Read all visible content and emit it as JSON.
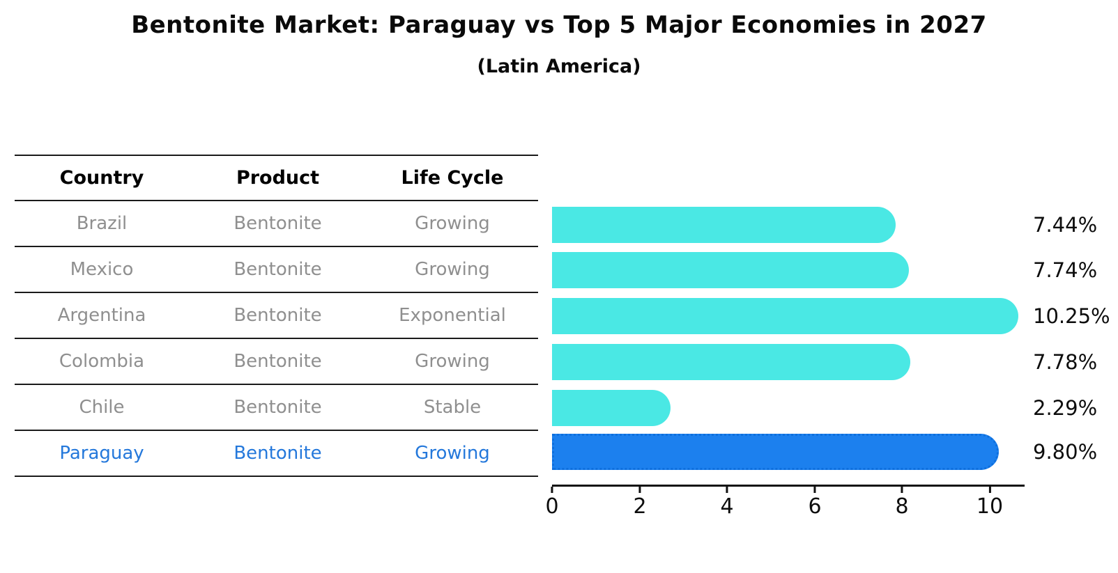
{
  "title": "Bentonite Market: Paraguay vs Top 5 Major Economies in 2027",
  "subtitle": "(Latin America)",
  "table": {
    "headers": [
      "Country",
      "Product",
      "Life Cycle"
    ],
    "rows": [
      {
        "country": "Brazil",
        "product": "Bentonite",
        "life_cycle": "Growing"
      },
      {
        "country": "Mexico",
        "product": "Bentonite",
        "life_cycle": "Growing"
      },
      {
        "country": "Argentina",
        "product": "Bentonite",
        "life_cycle": "Exponential"
      },
      {
        "country": "Colombia",
        "product": "Bentonite",
        "life_cycle": "Growing"
      },
      {
        "country": "Chile",
        "product": "Bentonite",
        "life_cycle": "Stable"
      },
      {
        "country": "Paraguay",
        "product": "Bentonite",
        "life_cycle": "Growing"
      }
    ],
    "highlight_row": 5
  },
  "chart_data": {
    "type": "bar",
    "orientation": "horizontal",
    "categories": [
      "Brazil",
      "Mexico",
      "Argentina",
      "Colombia",
      "Chile",
      "Paraguay"
    ],
    "values": [
      7.44,
      7.74,
      10.25,
      7.78,
      2.29,
      9.8
    ],
    "value_labels": [
      "7.44%",
      "7.74%",
      "10.25%",
      "7.78%",
      "2.29%",
      "9.80%"
    ],
    "x_ticks": [
      0,
      2,
      4,
      6,
      8,
      10
    ],
    "xlim": [
      0,
      10.8
    ],
    "grid": false,
    "value_label_position": "right",
    "highlight_index": 5,
    "bar_color": "#4AE8E4",
    "highlight_color": "#1C80EE",
    "highlight_border_color": "#0E6FDD",
    "axis_color": "#111111",
    "text_color": "#0d0d0d",
    "table_text_color": "#8f8f8f",
    "highlight_text_color": "#2478DB"
  }
}
